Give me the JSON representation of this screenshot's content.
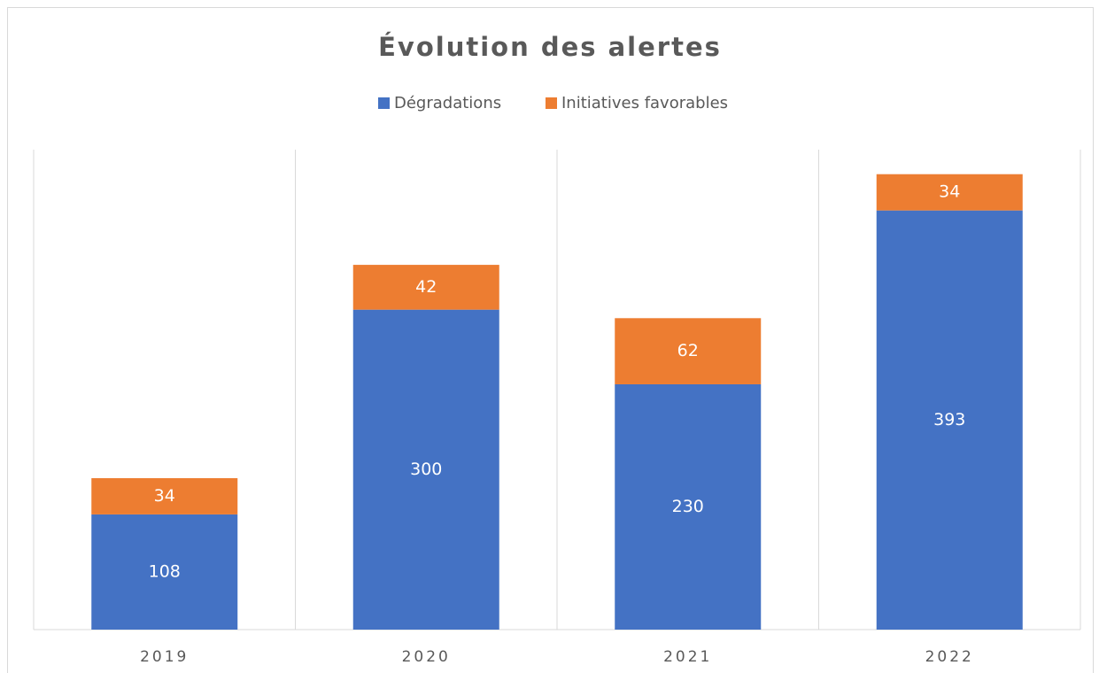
{
  "chart_data": {
    "type": "stacked_bar",
    "title": "Évolution des alertes",
    "categories": [
      "2019",
      "2020",
      "2021",
      "2022"
    ],
    "series": [
      {
        "name": "Dégradations",
        "color": "#4472c4",
        "values": [
          108,
          300,
          230,
          393
        ]
      },
      {
        "name": "Initiatives favorables",
        "color": "#ed7d31",
        "values": [
          34,
          42,
          62,
          34
        ]
      }
    ],
    "ylim": [
      0,
      450
    ],
    "legend": "top"
  }
}
